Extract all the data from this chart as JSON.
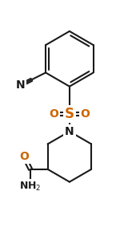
{
  "bg_color": "#ffffff",
  "bond_color": "#1a1a1a",
  "atom_colors": {
    "N": "#1a1a1a",
    "O": "#cc6600",
    "S": "#cc6600",
    "C": "#1a1a1a"
  },
  "line_width": 1.5,
  "font_size_atoms": 10,
  "font_size_labels": 9,
  "fig_w": 1.6,
  "fig_h": 2.94,
  "dpi": 100,
  "xlim": [
    0,
    160
  ],
  "ylim": [
    0,
    294
  ]
}
